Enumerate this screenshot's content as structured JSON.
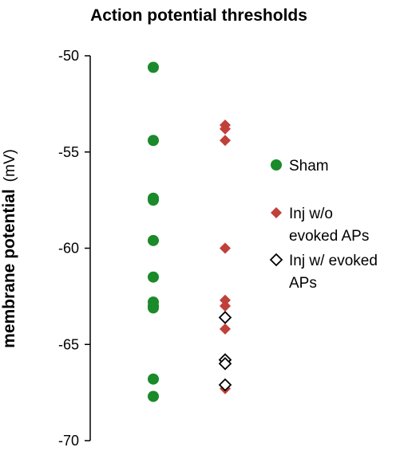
{
  "chart_data": {
    "type": "scatter",
    "title": "Action potential thresholds",
    "ylabel": "membrane potential",
    "ylabel_unit": "(mV)",
    "ylim": [
      -70,
      -50
    ],
    "yticks": [
      -50,
      -55,
      -60,
      -65,
      -70
    ],
    "ytick_labels": [
      "-50",
      "-55",
      "-60",
      "-65",
      "-70"
    ],
    "grid": false,
    "legend_position": "right",
    "series": [
      {
        "name": "Sham",
        "color": "#1a8a2a",
        "marker": "circle",
        "values": [
          -50.6,
          -54.4,
          -57.4,
          -57.5,
          -59.6,
          -61.5,
          -62.8,
          -63.0,
          -63.1,
          -66.8,
          -67.7
        ]
      },
      {
        "name": "Inj w/o evoked APs",
        "legend_lines": [
          "Inj w/o",
          "evoked APs"
        ],
        "color": "#c0403a",
        "marker": "diamond",
        "values": [
          -53.6,
          -53.8,
          -54.4,
          -60.0,
          -62.7,
          -63.0,
          -64.2,
          -67.3
        ]
      },
      {
        "name": "Inj w/ evoked APs",
        "legend_lines": [
          "Inj w/ evoked",
          "APs"
        ],
        "color": "#000000",
        "marker": "diamond-open",
        "values": [
          -63.6,
          -65.8,
          -66.0,
          -67.1
        ]
      }
    ]
  }
}
